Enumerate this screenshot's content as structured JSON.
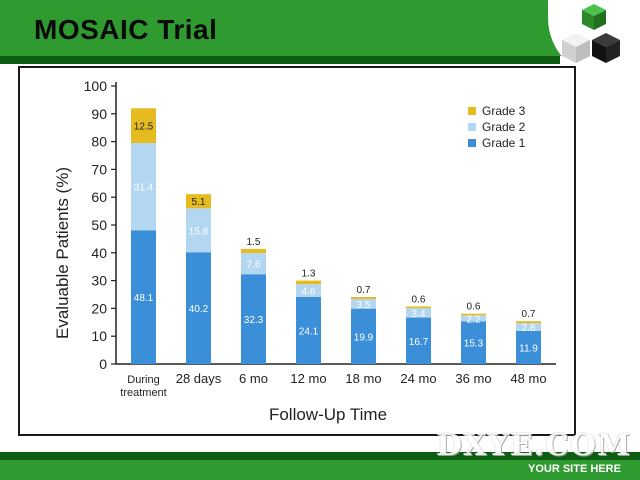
{
  "slide": {
    "title": "MOSAIC Trial"
  },
  "branding": {
    "watermark": "DXYE.COM",
    "site_text": "YOUR SITE HERE"
  },
  "colors": {
    "grade1": "#3b8fd8",
    "grade2": "#b3d6f1",
    "grade3": "#e5bb1f",
    "header_green": "#2f9a2f"
  },
  "chart_data": {
    "type": "bar",
    "stacked": true,
    "ylabel": "Evaluable Patients (%)",
    "xlabel": "Follow-Up Time",
    "ylim": [
      0,
      100
    ],
    "yticks": [
      0,
      10,
      20,
      30,
      40,
      50,
      60,
      70,
      80,
      90,
      100
    ],
    "categories": [
      "During treatment",
      "28 days",
      "6 mo",
      "12 mo",
      "18 mo",
      "24 mo",
      "36 mo",
      "48 mo"
    ],
    "series": [
      {
        "name": "Grade 1",
        "values": [
          48.1,
          40.2,
          32.3,
          24.1,
          19.9,
          16.7,
          15.3,
          11.9
        ]
      },
      {
        "name": "Grade 2",
        "values": [
          31.4,
          15.8,
          7.6,
          4.6,
          3.5,
          3.4,
          2.2,
          2.8
        ]
      },
      {
        "name": "Grade 3",
        "values": [
          12.5,
          5.1,
          1.5,
          1.3,
          0.7,
          0.6,
          0.6,
          0.7
        ]
      }
    ],
    "legend_position": "top-right"
  }
}
